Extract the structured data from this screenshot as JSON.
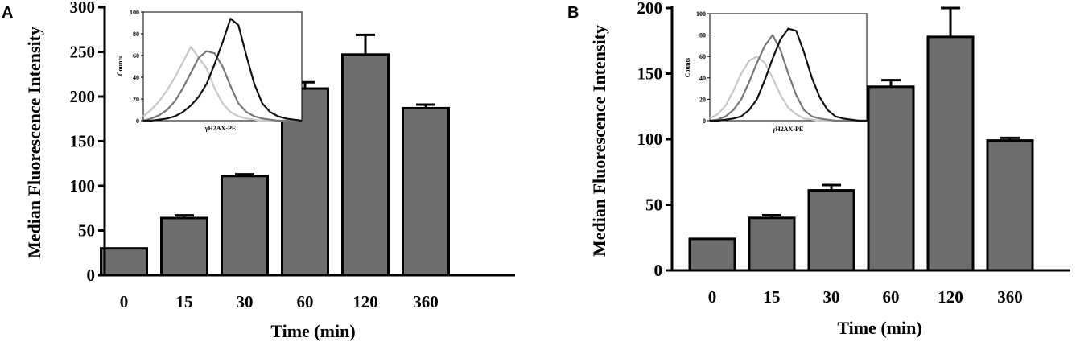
{
  "chart_data": [
    {
      "panel": "A",
      "type": "bar",
      "xlabel": "Time (min)",
      "ylabel": "Median Fluorescence Intensity",
      "categories": [
        "0",
        "15",
        "30",
        "60",
        "120",
        "360"
      ],
      "values": [
        30,
        64,
        111,
        209,
        247,
        187
      ],
      "errors": [
        0,
        3,
        2,
        7,
        22,
        4
      ],
      "ylim": [
        0,
        300
      ],
      "yticks": [
        "0",
        "50",
        "100",
        "150",
        "200",
        "250",
        "300"
      ],
      "bar_color": "#6e6e6e",
      "inset": {
        "type": "line",
        "xlabel": "γH2AX-PE",
        "ylabel": "Counts",
        "ylim": [
          0,
          100
        ],
        "yticks": [
          "0",
          "20",
          "40",
          "60",
          "80",
          "100"
        ],
        "x": [
          0,
          10,
          20,
          30,
          40,
          50,
          60,
          70,
          80,
          90,
          100,
          110,
          120,
          130,
          140,
          150,
          160,
          170,
          180,
          190,
          200
        ],
        "series": [
          {
            "color": "#c8c8c8",
            "values": [
              4,
              10,
              18,
              28,
              40,
              54,
              68,
              58,
              48,
              30,
              16,
              8,
              4,
              2,
              1,
              0,
              0,
              0,
              0,
              0,
              0
            ]
          },
          {
            "color": "#777777",
            "values": [
              0,
              2,
              5,
              10,
              18,
              30,
              44,
              58,
              64,
              62,
              50,
              32,
              16,
              8,
              4,
              2,
              1,
              0,
              0,
              0,
              0
            ]
          },
          {
            "color": "#111111",
            "values": [
              0,
              0,
              1,
              2,
              4,
              8,
              14,
              22,
              34,
              52,
              72,
              94,
              88,
              60,
              34,
              16,
              8,
              4,
              2,
              1,
              0
            ]
          }
        ]
      }
    },
    {
      "panel": "B",
      "type": "bar",
      "xlabel": "Time (min)",
      "ylabel": "Median Fluorescence Intensity",
      "categories": [
        "0",
        "15",
        "30",
        "60",
        "120",
        "360"
      ],
      "values": [
        24,
        40,
        61,
        140,
        178,
        99
      ],
      "errors": [
        0,
        2,
        4,
        5,
        22,
        2
      ],
      "ylim": [
        0,
        200
      ],
      "yticks": [
        "0",
        "50",
        "100",
        "150",
        "200"
      ],
      "bar_color": "#6e6e6e",
      "inset": {
        "type": "line",
        "xlabel": "γH2AX-PE",
        "ylabel": "Counts",
        "ylim": [
          0,
          100
        ],
        "yticks": [
          "0",
          "20",
          "40",
          "60",
          "80",
          "100"
        ],
        "x": [
          0,
          10,
          20,
          30,
          40,
          50,
          60,
          70,
          80,
          90,
          100,
          110,
          120,
          130,
          140,
          150,
          160,
          170,
          180,
          190,
          200
        ],
        "series": [
          {
            "color": "#c8c8c8",
            "values": [
              2,
              6,
              14,
              28,
              44,
              56,
              60,
              54,
              40,
              24,
              12,
              6,
              2,
              1,
              0,
              0,
              0,
              0,
              0,
              0,
              0
            ]
          },
          {
            "color": "#777777",
            "values": [
              0,
              1,
              4,
              10,
              20,
              36,
              54,
              70,
              80,
              66,
              44,
              24,
              10,
              4,
              2,
              1,
              0,
              0,
              0,
              0,
              0
            ]
          },
          {
            "color": "#111111",
            "values": [
              0,
              0,
              1,
              2,
              4,
              10,
              20,
              38,
              58,
              76,
              86,
              84,
              64,
              40,
              22,
              10,
              4,
              2,
              1,
              0,
              0
            ]
          }
        ]
      }
    }
  ]
}
